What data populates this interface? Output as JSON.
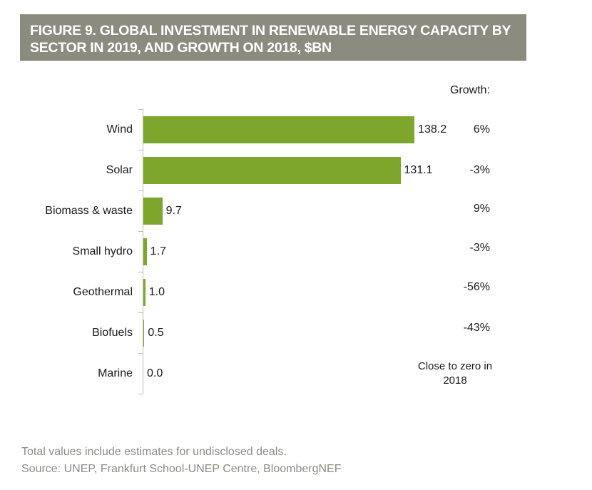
{
  "page": {
    "background": "#FFFFFF"
  },
  "title_bar": {
    "line1": "FIGURE 9. GLOBAL INVESTMENT IN RENEWABLE ENERGY CAPACITY BY",
    "line2": "SECTOR IN 2019, AND GROWTH ON 2018, $BN"
  },
  "colors": {
    "title_bar_bg": "#8B8B80",
    "title_text": "#FFFFFF",
    "bar_green": "#7EA52C",
    "axis_gray": "#BDBDB2",
    "label_text": "#1A1A1A",
    "footer_text": "#8C8C84"
  },
  "chart_data": {
    "type": "bar",
    "orientation": "horizontal",
    "title": "FIGURE 9. GLOBAL INVESTMENT IN RENEWABLE ENERGY CAPACITY BY SECTOR IN 2019, AND GROWTH ON 2018, $BN",
    "xlabel": "",
    "ylabel": "",
    "xlim": [
      0,
      145
    ],
    "grid": false,
    "legend": false,
    "growth_header": "Growth:",
    "categories": [
      "Wind",
      "Solar",
      "Biomass & waste",
      "Small hydro",
      "Geothermal",
      "Biofuels",
      "Marine"
    ],
    "values": [
      138.2,
      131.1,
      9.7,
      1.7,
      1.0,
      0.5,
      0.0
    ],
    "growth": [
      "6%",
      "-3%",
      "9%",
      "-3%",
      "-56%",
      "-43%",
      "Close to zero in 2018"
    ],
    "rows": [
      {
        "label": "Wind",
        "value": 138.2,
        "value_label": "138.2",
        "growth": "6%"
      },
      {
        "label": "Solar",
        "value": 131.1,
        "value_label": "131.1",
        "growth": "-3%"
      },
      {
        "label": "Biomass & waste",
        "value": 9.7,
        "value_label": "9.7",
        "growth": "9%"
      },
      {
        "label": "Small hydro",
        "value": 1.7,
        "value_label": "1.7",
        "growth": "-3%"
      },
      {
        "label": "Geothermal",
        "value": 1.0,
        "value_label": "1.0",
        "growth": "-56%"
      },
      {
        "label": "Biofuels",
        "value": 0.5,
        "value_label": "0.5",
        "growth": "-43%"
      },
      {
        "label": "Marine",
        "value": 0.0,
        "value_label": "0.0",
        "growth": "Close to zero in\n2018"
      }
    ]
  },
  "footer": {
    "note": "Total values include estimates for undisclosed deals.",
    "source": "Source: UNEP, Frankfurt School-UNEP Centre, BloombergNEF"
  }
}
